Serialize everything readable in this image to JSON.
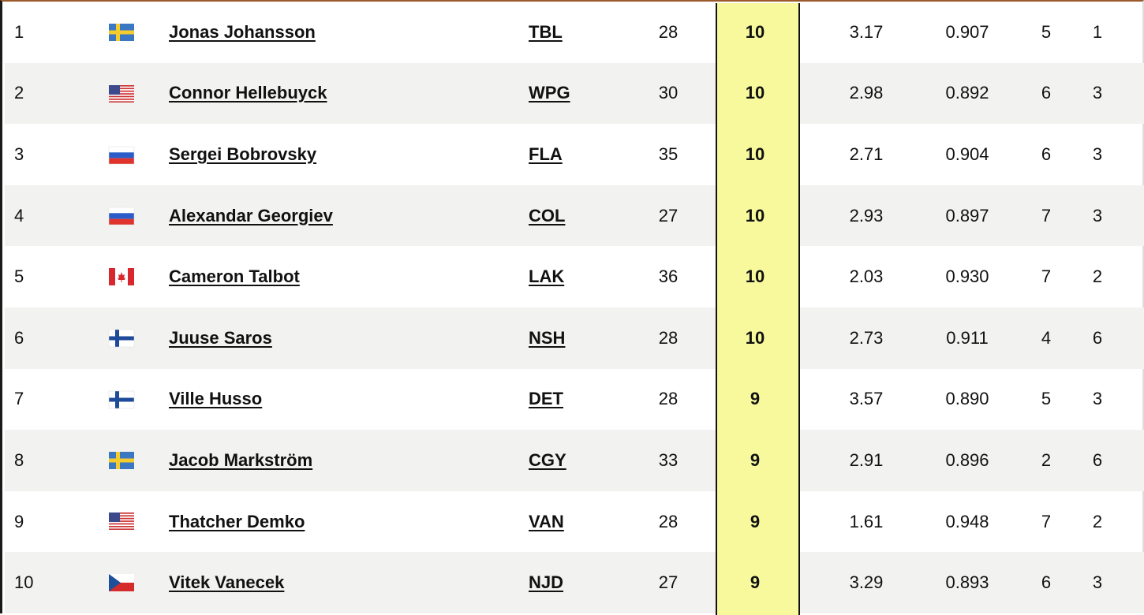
{
  "table": {
    "rows": [
      [
        "1",
        "Jonas Johansson",
        "TBL",
        "28",
        "10",
        "3.17",
        "0.907",
        "5",
        "1"
      ],
      [
        "2",
        "Connor Hellebuyck",
        "WPG",
        "30",
        "10",
        "2.98",
        "0.892",
        "6",
        "3"
      ],
      [
        "3",
        "Sergei Bobrovsky",
        "FLA",
        "35",
        "10",
        "2.71",
        "0.904",
        "6",
        "3"
      ],
      [
        "4",
        "Alexandar Georgiev",
        "COL",
        "27",
        "10",
        "2.93",
        "0.897",
        "7",
        "3"
      ],
      [
        "5",
        "Cameron Talbot",
        "LAK",
        "36",
        "10",
        "2.03",
        "0.930",
        "7",
        "2"
      ],
      [
        "6",
        "Juuse Saros",
        "NSH",
        "28",
        "10",
        "2.73",
        "0.911",
        "4",
        "6"
      ],
      [
        "7",
        "Ville Husso",
        "DET",
        "28",
        "9",
        "3.57",
        "0.890",
        "5",
        "3"
      ],
      [
        "8",
        "Jacob Markström",
        "CGY",
        "33",
        "9",
        "2.91",
        "0.896",
        "2",
        "6"
      ],
      [
        "9",
        "Thatcher Demko",
        "VAN",
        "28",
        "9",
        "1.61",
        "0.948",
        "7",
        "2"
      ],
      [
        "10",
        "Vitek Vanecek",
        "NJD",
        "27",
        "9",
        "3.29",
        "0.893",
        "6",
        "3"
      ]
    ]
  }
}
